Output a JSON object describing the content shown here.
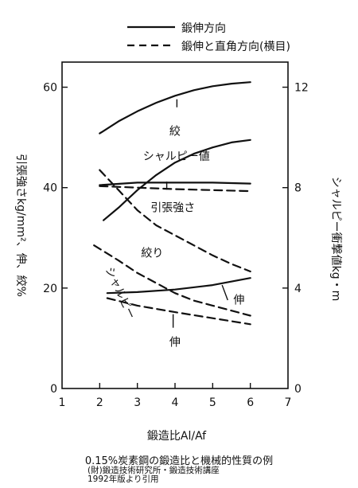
{
  "chart_data": {
    "type": "line",
    "title": "0.15%炭素鋼の鍛造比と機械的性質の例",
    "xlabel": "鍛造比Al/Af",
    "ylabel_left": "引張強さkg/mm²、伸、絞%",
    "ylabel_right": "シャルピー衝撃値kg・m",
    "xlim": [
      1,
      7
    ],
    "ylim_left": [
      0,
      65
    ],
    "ylim_right": [
      0,
      13
    ],
    "x_ticks": [
      "1",
      "2",
      "3",
      "4",
      "5",
      "6",
      "7"
    ],
    "y_ticks_left": [
      "0",
      "20",
      "40",
      "60"
    ],
    "y_ticks_right": [
      "0",
      "4",
      "8",
      "12"
    ],
    "grid": false,
    "legend": {
      "position": "top",
      "entries": [
        {
          "label": "鍛伸方向",
          "style": "solid"
        },
        {
          "label": "鍛伸と直角方向(横目)",
          "style": "dashed"
        }
      ]
    },
    "series": [
      {
        "name": "絞",
        "style": "solid",
        "axis": "left",
        "x": [
          2,
          2.5,
          3,
          3.5,
          4,
          4.5,
          5,
          5.5,
          6
        ],
        "y": [
          50.8,
          53.2,
          55.2,
          56.9,
          58.3,
          59.4,
          60.2,
          60.7,
          61.0
        ]
      },
      {
        "name": "シャルピー値",
        "style": "solid",
        "axis": "right",
        "x": [
          2.1,
          2.5,
          3,
          3.5,
          4,
          4.5,
          5,
          5.5,
          6
        ],
        "y": [
          6.7,
          7.2,
          7.9,
          8.5,
          9.0,
          9.35,
          9.6,
          9.8,
          9.9
        ]
      },
      {
        "name": "引張強さ",
        "style": "solid",
        "axis": "left",
        "x": [
          2,
          3,
          4,
          5,
          6
        ],
        "y": [
          40.5,
          41.0,
          41.0,
          41.0,
          40.8
        ]
      },
      {
        "name": "伸",
        "style": "solid",
        "axis": "left",
        "x": [
          2.2,
          3,
          4,
          5,
          6
        ],
        "y": [
          19.0,
          19.2,
          19.7,
          20.6,
          22.0
        ]
      },
      {
        "name": "絞り",
        "style": "dashed",
        "axis": "left",
        "x": [
          2,
          2.5,
          3,
          3.5,
          4,
          4.5,
          5,
          5.5,
          6
        ],
        "y": [
          43.5,
          39.5,
          35.5,
          32.5,
          30.5,
          28.5,
          26.5,
          24.8,
          23.3
        ]
      },
      {
        "name": "引張強さ",
        "style": "dashed",
        "axis": "left",
        "x": [
          2,
          3,
          4,
          5,
          6
        ],
        "y": [
          40.3,
          40.0,
          39.7,
          39.5,
          39.3
        ]
      },
      {
        "name": "シャルピー",
        "style": "dashed",
        "axis": "right",
        "x": [
          1.85,
          2.5,
          3,
          3.5,
          4,
          4.5,
          5,
          5.5,
          6
        ],
        "y": [
          5.7,
          5.1,
          4.6,
          4.2,
          3.8,
          3.5,
          3.3,
          3.1,
          2.9
        ]
      },
      {
        "name": "伸",
        "style": "dashed",
        "axis": "left",
        "x": [
          2.2,
          3,
          4,
          5,
          6
        ],
        "y": [
          18.0,
          16.5,
          15.2,
          14.0,
          12.8
        ]
      }
    ],
    "annotations": [
      "絞",
      "シャルピー値",
      "引張強さ",
      "絞り",
      "シャルピー",
      "伸",
      "伸"
    ]
  },
  "caption": {
    "title": "0.15%炭素鋼の鍛造比と機械的性質の例",
    "source_line1": "(財)鍛造技術研究所・鍛造技術講座",
    "source_line2": "1992年版より引用"
  }
}
